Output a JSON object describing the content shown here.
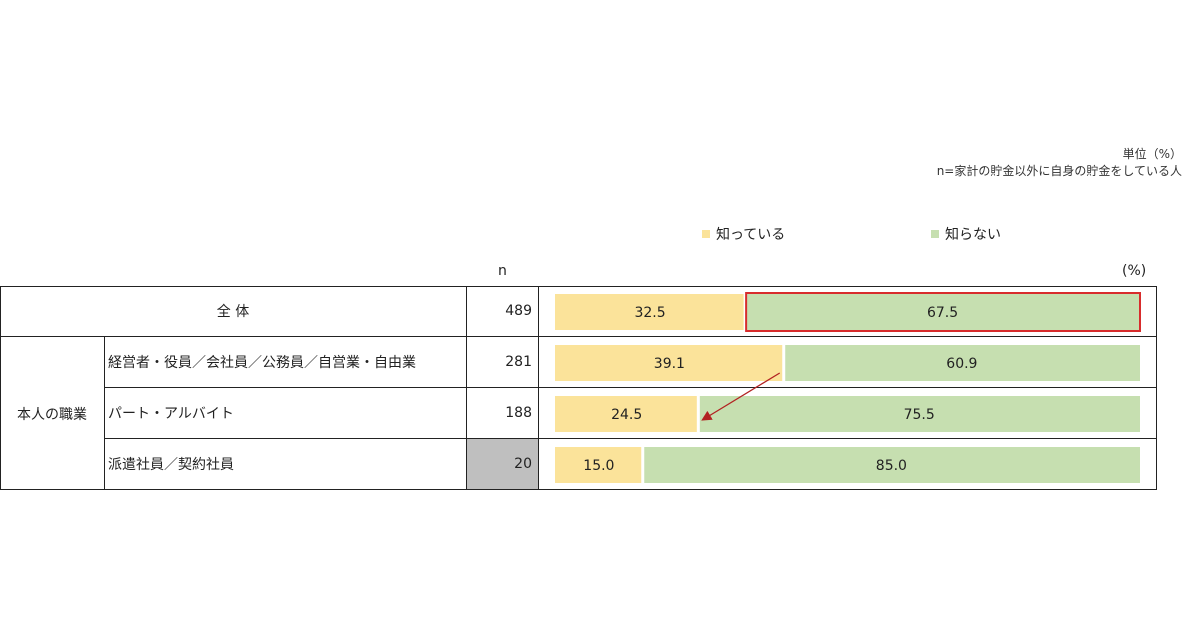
{
  "note": {
    "unit": "単位（%）",
    "base": "n=家計の貯金以外に自身の貯金をしている人"
  },
  "legend": {
    "know": "知っている",
    "dont_know": "知らない"
  },
  "headers": {
    "n": "n",
    "pct": "(%)"
  },
  "group_label": "本人の職業",
  "colors": {
    "know": "#fbe39a",
    "dont_know": "#c6dfb0",
    "highlight": "#d82c2c",
    "arrow": "#b22222"
  },
  "chart_data": {
    "type": "bar",
    "orientation": "horizontal",
    "stacked": true,
    "percent_stacked": true,
    "categories": [
      "全 体",
      "経営者・役員／会社員／公務員／自営業・自由業",
      "パート・アルバイト",
      "派遣社員／契約社員"
    ],
    "n": [
      489,
      281,
      188,
      20
    ],
    "series": [
      {
        "name": "知っている",
        "values": [
          32.5,
          39.1,
          24.5,
          15.0
        ],
        "value_labels": [
          "32.5",
          "39.1",
          "24.5",
          "15.0"
        ]
      },
      {
        "name": "知らない",
        "values": [
          67.5,
          60.9,
          75.5,
          85.0
        ],
        "value_labels": [
          "67.5",
          "60.9",
          "75.5",
          "85.0"
        ]
      }
    ],
    "xlim": [
      0,
      100
    ],
    "legend_position": "top",
    "highlight": {
      "category_index": 0,
      "series_index": 1
    },
    "arrow": {
      "from": {
        "category_index": 1,
        "series_index": 0
      },
      "to": {
        "category_index": 2,
        "series_index": 0
      }
    }
  }
}
